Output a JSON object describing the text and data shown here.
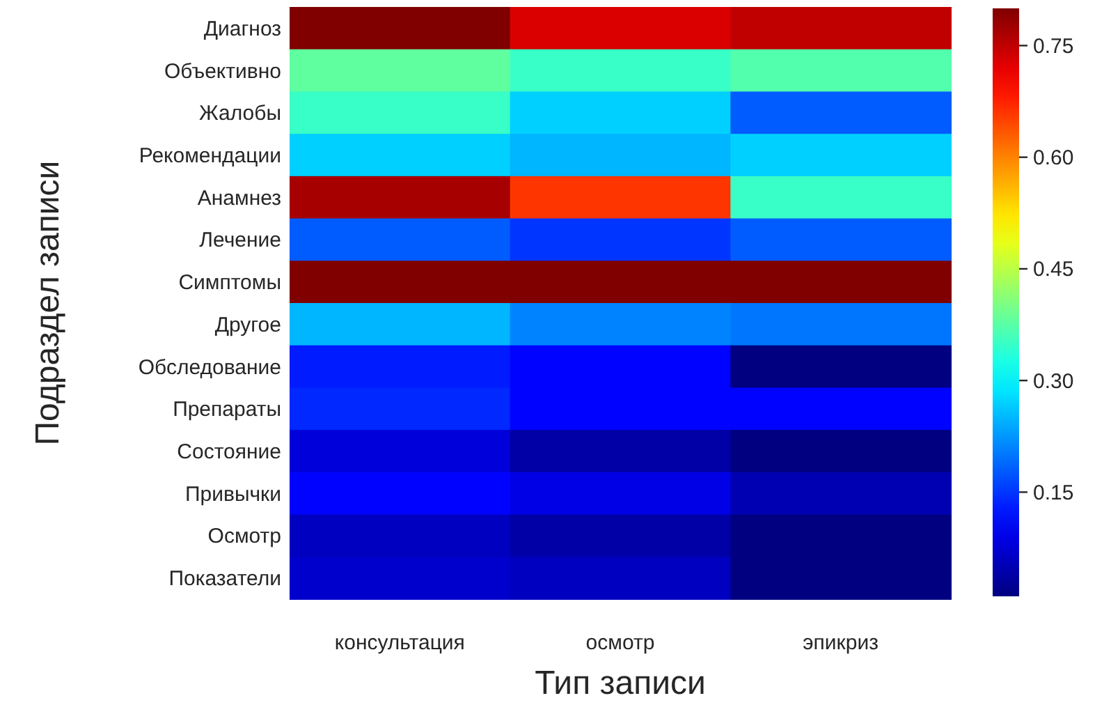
{
  "chart_data": {
    "type": "heatmap",
    "xlabel": "Тип записи",
    "ylabel": "Подраздел записи",
    "categories": [
      "консультация",
      "осмотр",
      "эпикриз"
    ],
    "y_categories": [
      "Диагноз",
      "Объективно",
      "Жалобы",
      "Рекомендации",
      "Анамнез",
      "Лечение",
      "Симптомы",
      "Другое",
      "Обследование",
      "Препараты",
      "Состояние",
      "Привычки",
      "Осмотр",
      "Показатели"
    ],
    "cells": [
      [
        0.8,
        0.73,
        0.75
      ],
      [
        0.38,
        0.35,
        0.37
      ],
      [
        0.35,
        0.27,
        0.18
      ],
      [
        0.27,
        0.25,
        0.27
      ],
      [
        0.77,
        0.66,
        0.35
      ],
      [
        0.18,
        0.15,
        0.18
      ],
      [
        0.8,
        0.8,
        0.8
      ],
      [
        0.25,
        0.21,
        0.2
      ],
      [
        0.13,
        0.11,
        0.01
      ],
      [
        0.14,
        0.11,
        0.11
      ],
      [
        0.08,
        0.04,
        0.01
      ],
      [
        0.11,
        0.09,
        0.05
      ],
      [
        0.06,
        0.04,
        0.01
      ],
      [
        0.07,
        0.06,
        0.01
      ]
    ],
    "clim": [
      0.01,
      0.8
    ],
    "cticks": [
      {
        "value": 0.15,
        "label": "0.15"
      },
      {
        "value": 0.3,
        "label": "0.30"
      },
      {
        "value": 0.45,
        "label": "0.45"
      },
      {
        "value": 0.6,
        "label": "0.60"
      },
      {
        "value": 0.75,
        "label": "0.75"
      }
    ]
  }
}
